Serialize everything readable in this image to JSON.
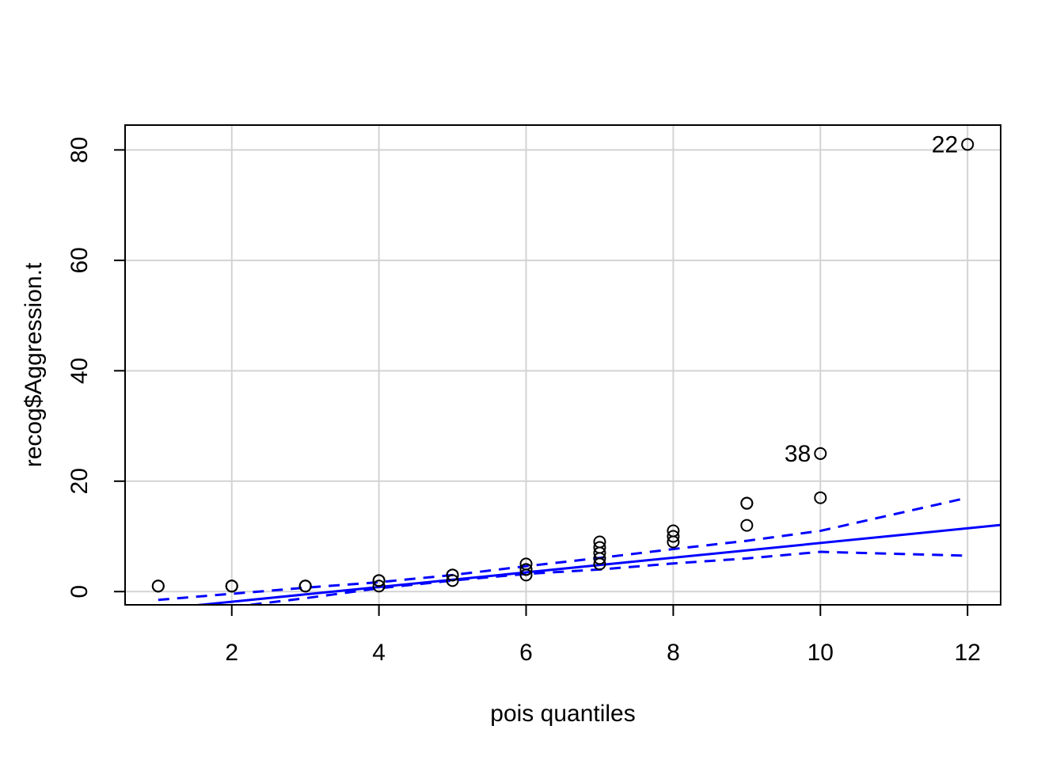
{
  "chart_data": {
    "type": "scatter",
    "title": "",
    "xlabel": "pois quantiles",
    "ylabel": "recog$Aggression.t",
    "xlim": [
      0.55,
      12.45
    ],
    "ylim": [
      -2.4,
      84.5
    ],
    "xticks": [
      2,
      4,
      6,
      8,
      10,
      12
    ],
    "yticks": [
      0,
      20,
      40,
      60,
      80
    ],
    "x_tick_labels": [
      "2",
      "4",
      "6",
      "8",
      "10",
      "12"
    ],
    "y_tick_labels": [
      "0",
      "20",
      "40",
      "60",
      "80"
    ],
    "grid": true,
    "colors": {
      "points": "#000000",
      "reference": "#0000ff",
      "grid": "#d3d3d3"
    },
    "points": [
      {
        "x": 1,
        "y": 1
      },
      {
        "x": 1,
        "y": 1
      },
      {
        "x": 2,
        "y": 1
      },
      {
        "x": 2,
        "y": 1
      },
      {
        "x": 2,
        "y": 1
      },
      {
        "x": 3,
        "y": 1
      },
      {
        "x": 3,
        "y": 1
      },
      {
        "x": 3,
        "y": 1
      },
      {
        "x": 4,
        "y": 2
      },
      {
        "x": 4,
        "y": 2
      },
      {
        "x": 4,
        "y": 1
      },
      {
        "x": 5,
        "y": 3
      },
      {
        "x": 5,
        "y": 3
      },
      {
        "x": 5,
        "y": 2
      },
      {
        "x": 6,
        "y": 5
      },
      {
        "x": 6,
        "y": 4
      },
      {
        "x": 6,
        "y": 4
      },
      {
        "x": 6,
        "y": 3
      },
      {
        "x": 7,
        "y": 9
      },
      {
        "x": 7,
        "y": 8
      },
      {
        "x": 7,
        "y": 7
      },
      {
        "x": 7,
        "y": 6
      },
      {
        "x": 7,
        "y": 5
      },
      {
        "x": 8,
        "y": 11
      },
      {
        "x": 8,
        "y": 10
      },
      {
        "x": 8,
        "y": 9
      },
      {
        "x": 9,
        "y": 16
      },
      {
        "x": 9,
        "y": 16
      },
      {
        "x": 9,
        "y": 12
      },
      {
        "x": 10,
        "y": 17
      },
      {
        "x": 10,
        "y": 25,
        "label": "38"
      },
      {
        "x": 12,
        "y": 81,
        "label": "22"
      }
    ],
    "reference_line": {
      "intercept": -4.5,
      "slope": 1.33
    },
    "confidence_upper": [
      [
        1,
        -1.5
      ],
      [
        2,
        -0.4
      ],
      [
        3,
        0.7
      ],
      [
        4,
        1.7
      ],
      [
        5,
        3.0
      ],
      [
        6,
        4.6
      ],
      [
        7,
        6.1
      ],
      [
        8,
        7.7
      ],
      [
        9,
        9.2
      ],
      [
        10,
        11.0
      ],
      [
        12,
        17.0
      ]
    ],
    "confidence_lower": [
      [
        2,
        -2.8
      ],
      [
        3,
        -1.2
      ],
      [
        4,
        0.6
      ],
      [
        5,
        2.0
      ],
      [
        6,
        3.2
      ],
      [
        7,
        4.0
      ],
      [
        8,
        5.1
      ],
      [
        9,
        6.0
      ],
      [
        10,
        7.2
      ],
      [
        12,
        6.5
      ]
    ]
  }
}
